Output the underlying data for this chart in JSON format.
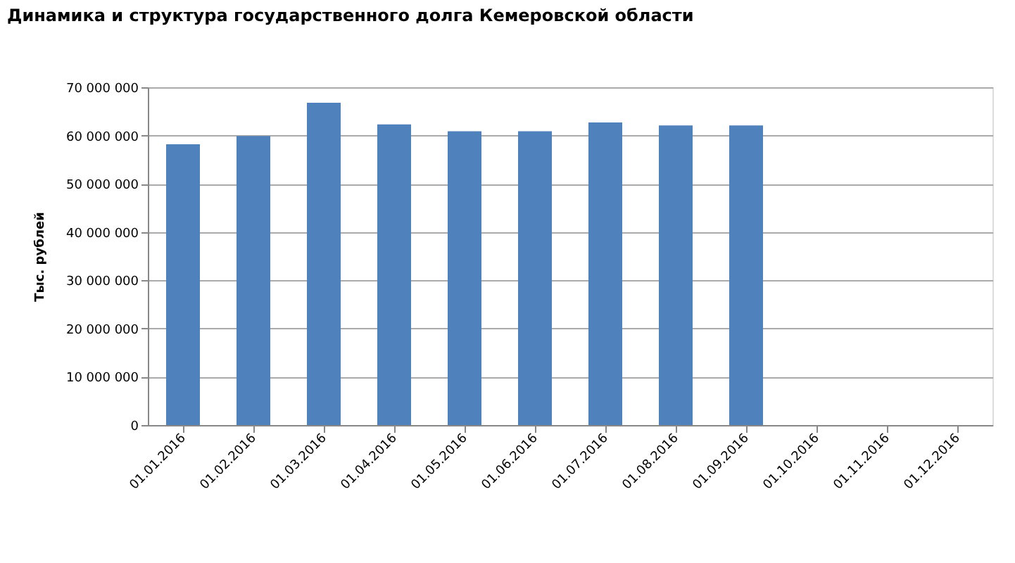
{
  "chart_data": {
    "type": "bar",
    "title": "Динамика и структура государственного долга Кемеровской области",
    "ylabel": "Тыс. рублей",
    "categories": [
      "01.01.2016",
      "01.02.2016",
      "01.03.2016",
      "01.04.2016",
      "01.05.2016",
      "01.06.2016",
      "01.07.2016",
      "01.08.2016",
      "01.09.2016",
      "01.10.2016",
      "01.11.2016",
      "01.12.2016"
    ],
    "values": [
      58200000,
      59900000,
      66800000,
      62300000,
      60900000,
      60900000,
      62700000,
      62100000,
      62100000,
      null,
      null,
      null
    ],
    "color": "#4f81bd",
    "ylim": [
      0,
      70000000
    ],
    "yticks": [
      {
        "value": 0,
        "label": "0"
      },
      {
        "value": 10000000,
        "label": "10 000 000"
      },
      {
        "value": 20000000,
        "label": "20 000 000"
      },
      {
        "value": 30000000,
        "label": "30 000 000"
      },
      {
        "value": 40000000,
        "label": "40 000 000"
      },
      {
        "value": 50000000,
        "label": "50 000 000"
      },
      {
        "value": 60000000,
        "label": "60 000 000"
      },
      {
        "value": 70000000,
        "label": "70 000 000"
      }
    ],
    "grid": "y"
  }
}
